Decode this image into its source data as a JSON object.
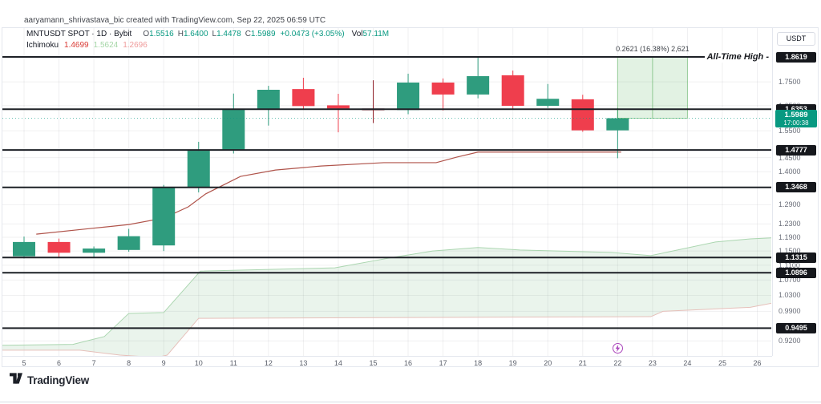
{
  "attribution": "aaryamann_shrivastava_bic created with TradingView.com, Sep 22, 2025 06:59 UTC",
  "legend": {
    "symbol_title": "MNTUSDT SPOT · 1D · Bybit",
    "ohlc": {
      "o_label": "O",
      "o": "1.5516",
      "h_label": "H",
      "h": "1.6400",
      "l_label": "L",
      "l": "1.4478",
      "c_label": "C",
      "c": "1.5989",
      "change": "+0.0473 (+3.05%)",
      "vol_label": "Vol",
      "vol": "57.11M"
    },
    "indicator": {
      "label": "Ichimoku",
      "values": [
        {
          "text": "1.4699",
          "color": "#d93a35"
        },
        {
          "text": "1.5624",
          "color": "#a5d6a7"
        },
        {
          "text": "1.2696",
          "color": "#ef9a9a"
        }
      ]
    }
  },
  "price_axis": {
    "currency": "USDT",
    "ticks": [
      "1.7500",
      "1.6500",
      "1.5500",
      "1.4500",
      "1.4000",
      "1.2900",
      "1.2300",
      "1.1900",
      "1.1500",
      "1.1100",
      "1.0700",
      "1.0300",
      "0.9900",
      "0.9200"
    ],
    "level_badges": [
      "1.8619",
      "1.6353",
      "1.4777",
      "1.3468",
      "1.1315",
      "1.0896",
      "0.9495"
    ],
    "last_price_badge": {
      "price": "1.5989",
      "countdown": "17:00:38"
    }
  },
  "time_axis": {
    "days": [
      "5",
      "6",
      "7",
      "8",
      "9",
      "10",
      "11",
      "12",
      "13",
      "14",
      "15",
      "16",
      "17",
      "18",
      "19",
      "20",
      "21",
      "22",
      "23",
      "24",
      "25",
      "26"
    ],
    "event_day": 22
  },
  "annotations": {
    "ath_label": "All-Time High -",
    "range_label": "0.2621 (16.38%) 2,621"
  },
  "logo": {
    "brand": "TradingView"
  },
  "chart_data": {
    "type": "candlestick",
    "title": "MNTUSDT SPOT · 1D · Bybit",
    "scale": "log",
    "x_unit": "day of Sep 2025",
    "ylim": [
      0.88,
      1.9
    ],
    "candles": [
      {
        "day": 5,
        "o": 1.135,
        "h": 1.192,
        "l": 1.129,
        "c": 1.176
      },
      {
        "day": 6,
        "o": 1.176,
        "h": 1.186,
        "l": 1.133,
        "c": 1.145
      },
      {
        "day": 7,
        "o": 1.145,
        "h": 1.163,
        "l": 1.132,
        "c": 1.157
      },
      {
        "day": 8,
        "o": 1.153,
        "h": 1.215,
        "l": 1.148,
        "c": 1.193
      },
      {
        "day": 9,
        "o": 1.166,
        "h": 1.355,
        "l": 1.15,
        "c": 1.346
      },
      {
        "day": 10,
        "o": 1.347,
        "h": 1.508,
        "l": 1.33,
        "c": 1.475
      },
      {
        "day": 11,
        "o": 1.477,
        "h": 1.7,
        "l": 1.465,
        "c": 1.633
      },
      {
        "day": 12,
        "o": 1.635,
        "h": 1.733,
        "l": 1.57,
        "c": 1.716
      },
      {
        "day": 13,
        "o": 1.719,
        "h": 1.768,
        "l": 1.634,
        "c": 1.648
      },
      {
        "day": 14,
        "o": 1.651,
        "h": 1.699,
        "l": 1.544,
        "c": 1.638
      },
      {
        "day": 15,
        "o": 1.638,
        "h": 1.757,
        "l": 1.58,
        "c": 1.631,
        "variant": "dark"
      },
      {
        "day": 16,
        "o": 1.632,
        "h": 1.786,
        "l": 1.615,
        "c": 1.747
      },
      {
        "day": 17,
        "o": 1.747,
        "h": 1.765,
        "l": 1.63,
        "c": 1.696
      },
      {
        "day": 18,
        "o": 1.696,
        "h": 1.862,
        "l": 1.68,
        "c": 1.775
      },
      {
        "day": 19,
        "o": 1.779,
        "h": 1.8,
        "l": 1.633,
        "c": 1.649
      },
      {
        "day": 20,
        "o": 1.649,
        "h": 1.741,
        "l": 1.64,
        "c": 1.678
      },
      {
        "day": 21,
        "o": 1.676,
        "h": 1.695,
        "l": 1.546,
        "c": 1.5516
      },
      {
        "day": 22,
        "o": 1.5516,
        "h": 1.64,
        "l": 1.4478,
        "c": 1.5989
      }
    ],
    "levels": [
      1.8619,
      1.6353,
      1.4777,
      1.3468,
      1.1315,
      1.0896,
      0.9495
    ],
    "yticks": [
      1.75,
      1.65,
      1.55,
      1.45,
      1.4,
      1.29,
      1.23,
      1.19,
      1.15,
      1.11,
      1.07,
      1.03,
      0.99,
      0.92
    ],
    "last_price": 1.5989,
    "ichimoku": {
      "baseline": [
        [
          5.35,
          1.199
        ],
        [
          6.9,
          1.216
        ],
        [
          8.0,
          1.228
        ],
        [
          9.0,
          1.248
        ],
        [
          9.7,
          1.283
        ],
        [
          10.2,
          1.325
        ],
        [
          11.2,
          1.384
        ],
        [
          12.2,
          1.406
        ],
        [
          13.5,
          1.42
        ],
        [
          15.3,
          1.432
        ],
        [
          16.8,
          1.432
        ],
        [
          17.4,
          1.452
        ],
        [
          18.0,
          1.47
        ],
        [
          22.1,
          1.47
        ]
      ],
      "senkou_a": [
        [
          4.35,
          0.91
        ],
        [
          6.4,
          0.912
        ],
        [
          7.3,
          0.93
        ],
        [
          8.0,
          0.985
        ],
        [
          9.0,
          0.987
        ],
        [
          10.05,
          1.094
        ],
        [
          13.9,
          1.103
        ],
        [
          15.45,
          1.13
        ],
        [
          16.7,
          1.15
        ],
        [
          18.0,
          1.16
        ],
        [
          19.2,
          1.153
        ],
        [
          21.8,
          1.146
        ],
        [
          22.95,
          1.137
        ],
        [
          24.8,
          1.176
        ],
        [
          25.8,
          1.185
        ],
        [
          26.4,
          1.188
        ]
      ],
      "senkou_b": [
        [
          4.35,
          0.899
        ],
        [
          6.6,
          0.899
        ],
        [
          7.75,
          0.888
        ],
        [
          8.8,
          0.883
        ],
        [
          9.1,
          0.888
        ],
        [
          10.0,
          0.973
        ],
        [
          16.1,
          0.975
        ],
        [
          22.95,
          0.977
        ],
        [
          23.3,
          0.99
        ],
        [
          25.8,
          1.0
        ],
        [
          26.4,
          1.01
        ]
      ]
    },
    "range_tool": {
      "from_day": 22.0,
      "to_day": 24.0,
      "top": 1.861,
      "bottom": 1.5989,
      "label": "0.2621 (16.38%) 2,621"
    }
  },
  "colors": {
    "up": "#2f9c7e",
    "down": "#ef3e4d",
    "down_dark": "#8f1f28",
    "level": "#1d2026",
    "kijun": "#b0544b",
    "cloud_fill": "rgba(103,176,120,0.14)",
    "senkou_a": "#abd6b0",
    "senkou_b": "#e6c0ba",
    "last": "#089981",
    "range_fill": "rgba(76,175,80,0.16)",
    "range_line": "rgba(76,175,80,0.5)",
    "event": "#ab47bc"
  }
}
